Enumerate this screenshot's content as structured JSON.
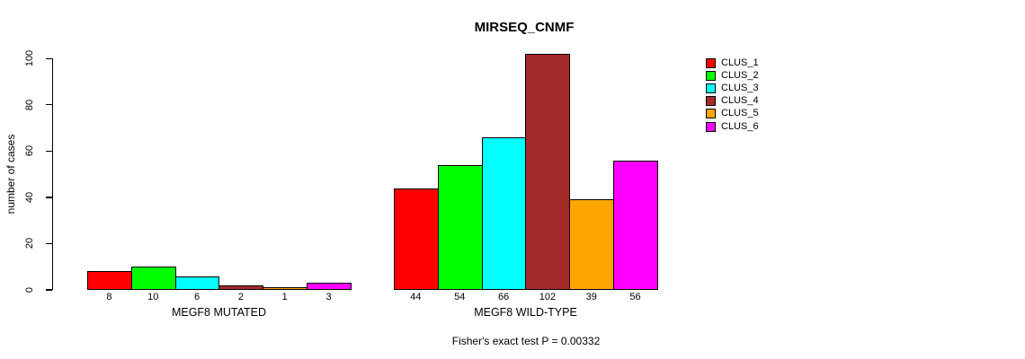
{
  "chart_data": {
    "type": "bar",
    "title": "MIRSEQ_CNMF",
    "ylabel": "number of cases",
    "xlabel": "",
    "ylim": [
      0,
      100
    ],
    "yticks": [
      0,
      20,
      40,
      60,
      80,
      100
    ],
    "grid": false,
    "legend_position": "right",
    "categories": [
      "MEGF8 MUTATED",
      "MEGF8 WILD-TYPE"
    ],
    "series": [
      {
        "name": "CLUS_1",
        "color": "#FF0000",
        "values": [
          8,
          44
        ]
      },
      {
        "name": "CLUS_2",
        "color": "#00FF00",
        "values": [
          10,
          54
        ]
      },
      {
        "name": "CLUS_3",
        "color": "#00FFFF",
        "values": [
          6,
          66
        ]
      },
      {
        "name": "CLUS_4",
        "color": "#A52A2A",
        "values": [
          2,
          102
        ]
      },
      {
        "name": "CLUS_5",
        "color": "#FFA500",
        "values": [
          1,
          39
        ]
      },
      {
        "name": "CLUS_6",
        "color": "#FF00FF",
        "values": [
          3,
          56
        ]
      }
    ],
    "bar_value_labels": [
      [
        "8",
        "10",
        "6",
        "2",
        "1",
        "3"
      ],
      [
        "44",
        "54",
        "66",
        "102",
        "39",
        "56"
      ]
    ],
    "annotation": "Fisher's exact test P = 0.00332"
  }
}
